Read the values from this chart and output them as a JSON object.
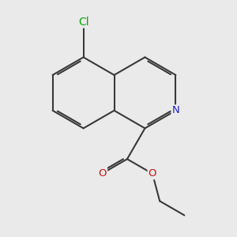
{
  "background_color": "#eaeaea",
  "bond_color": "#3a3a3a",
  "bond_lw": 1.5,
  "dbo": 0.055,
  "atom_colors": {
    "Cl": "#00aa00",
    "N": "#2222cc",
    "O": "#cc1111"
  },
  "font_size": 9.5,
  "figsize": [
    3.0,
    3.0
  ],
  "dpi": 100,
  "BL": 1.0
}
